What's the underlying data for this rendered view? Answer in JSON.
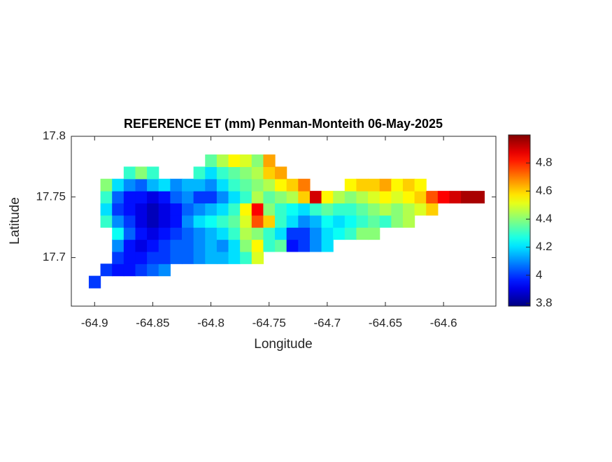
{
  "chart_data": {
    "type": "heatmap",
    "title": "REFERENCE ET (mm) Penman-Monteith 06-May-2025",
    "x_label": "Longitude",
    "y_label": "Latitude",
    "colormap": "jet",
    "xlim": [
      -64.92,
      -64.555
    ],
    "ylim": [
      17.66,
      17.8
    ],
    "xticks": [
      -64.9,
      -64.85,
      -64.8,
      -64.75,
      -64.7,
      -64.65,
      -64.6
    ],
    "yticks": [
      17.7,
      17.75,
      17.8
    ],
    "clim": [
      3.78,
      5.0
    ],
    "cticks": [
      3.8,
      4,
      4.2,
      4.4,
      4.6,
      4.8
    ],
    "x": [
      -64.9,
      -64.89,
      -64.88,
      -64.87,
      -64.86,
      -64.85,
      -64.84,
      -64.83,
      -64.82,
      -64.81,
      -64.8,
      -64.79,
      -64.78,
      -64.77,
      -64.76,
      -64.75,
      -64.74,
      -64.73,
      -64.72,
      -64.71,
      -64.7,
      -64.69,
      -64.68,
      -64.67,
      -64.66,
      -64.65,
      -64.64,
      -64.63,
      -64.62,
      -64.61,
      -64.6,
      -64.59,
      -64.58,
      -64.57
    ],
    "y": [
      17.68,
      17.69,
      17.7,
      17.71,
      17.72,
      17.73,
      17.74,
      17.75,
      17.76,
      17.77,
      17.78
    ],
    "z": [
      [
        4.0,
        null,
        null,
        null,
        null,
        null,
        null,
        null,
        null,
        null,
        null,
        null,
        null,
        null,
        null,
        null,
        null,
        null,
        null,
        null,
        null,
        null,
        null,
        null,
        null,
        null,
        null,
        null,
        null,
        null,
        null,
        null,
        null,
        null
      ],
      [
        null,
        4.0,
        3.95,
        3.95,
        4.0,
        4.05,
        4.1,
        null,
        null,
        null,
        null,
        null,
        null,
        null,
        null,
        null,
        null,
        null,
        null,
        null,
        null,
        null,
        null,
        null,
        null,
        null,
        null,
        null,
        null,
        null,
        null,
        null,
        null,
        null
      ],
      [
        null,
        null,
        4.0,
        3.95,
        3.95,
        4.0,
        4.0,
        4.05,
        4.05,
        4.1,
        4.15,
        4.15,
        4.2,
        4.3,
        4.5,
        null,
        null,
        null,
        null,
        null,
        null,
        null,
        null,
        null,
        null,
        null,
        null,
        null,
        null,
        null,
        null,
        null,
        null,
        null
      ],
      [
        null,
        null,
        4.1,
        3.95,
        3.9,
        3.95,
        4.0,
        4.05,
        4.05,
        4.1,
        4.15,
        4.1,
        4.2,
        4.4,
        4.55,
        4.3,
        4.35,
        3.95,
        4.0,
        4.1,
        4.2,
        null,
        null,
        null,
        null,
        null,
        null,
        null,
        null,
        null,
        null,
        null,
        null,
        null
      ],
      [
        null,
        null,
        4.25,
        4.05,
        3.95,
        3.9,
        3.95,
        4.0,
        4.05,
        4.1,
        4.15,
        4.2,
        4.3,
        4.45,
        4.4,
        4.3,
        4.2,
        4.0,
        4.0,
        4.1,
        4.2,
        4.25,
        4.3,
        4.4,
        4.4,
        null,
        null,
        null,
        null,
        null,
        null,
        null,
        null,
        null
      ],
      [
        null,
        4.3,
        4.1,
        4.0,
        3.9,
        3.85,
        3.9,
        3.95,
        4.1,
        4.2,
        4.25,
        4.3,
        4.35,
        4.5,
        4.75,
        4.6,
        4.3,
        4.2,
        4.1,
        4.15,
        4.25,
        4.2,
        4.25,
        4.3,
        4.35,
        4.3,
        4.4,
        4.45,
        null,
        null,
        null,
        null,
        null,
        null
      ],
      [
        null,
        4.2,
        4.0,
        3.95,
        3.9,
        3.85,
        3.9,
        3.95,
        4.05,
        4.1,
        4.15,
        4.2,
        4.3,
        4.55,
        4.85,
        4.4,
        4.3,
        4.25,
        4.2,
        4.3,
        4.35,
        4.3,
        4.3,
        4.35,
        4.4,
        4.45,
        4.4,
        4.45,
        4.5,
        4.6,
        null,
        null,
        null,
        null
      ],
      [
        null,
        4.3,
        4.05,
        3.95,
        3.95,
        3.9,
        3.95,
        4.05,
        4.1,
        4.0,
        4.0,
        4.1,
        4.2,
        4.3,
        4.45,
        4.35,
        4.4,
        4.45,
        4.6,
        4.9,
        4.55,
        4.45,
        4.4,
        4.45,
        4.5,
        4.55,
        4.5,
        4.55,
        4.6,
        4.75,
        4.85,
        4.9,
        4.95,
        4.95
      ],
      [
        null,
        4.4,
        4.2,
        4.1,
        4.05,
        4.15,
        4.2,
        4.1,
        4.15,
        4.15,
        4.1,
        4.2,
        4.3,
        4.35,
        4.4,
        4.45,
        4.55,
        4.6,
        4.7,
        null,
        null,
        null,
        4.55,
        4.6,
        4.6,
        4.65,
        4.55,
        4.6,
        4.55,
        null,
        null,
        null,
        null,
        null
      ],
      [
        null,
        null,
        null,
        4.3,
        4.4,
        4.3,
        null,
        null,
        null,
        4.3,
        4.2,
        4.3,
        4.35,
        4.4,
        4.45,
        4.6,
        4.65,
        null,
        null,
        null,
        null,
        null,
        null,
        null,
        null,
        null,
        null,
        null,
        null,
        null,
        null,
        null,
        null,
        null
      ],
      [
        null,
        null,
        null,
        null,
        null,
        null,
        null,
        null,
        null,
        null,
        4.35,
        4.45,
        4.55,
        4.5,
        4.4,
        4.65,
        null,
        null,
        null,
        null,
        null,
        null,
        null,
        null,
        null,
        null,
        null,
        null,
        null,
        null,
        null,
        null,
        null,
        null
      ]
    ]
  }
}
